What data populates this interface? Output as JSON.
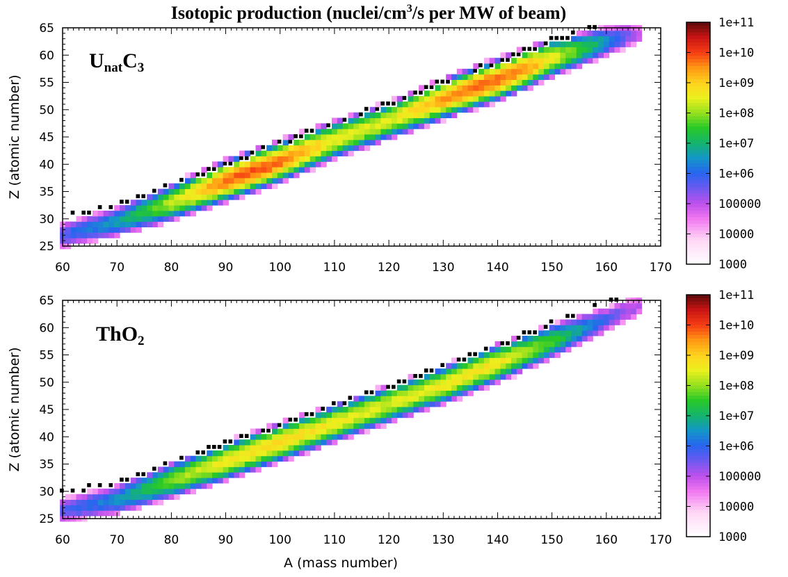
{
  "figure": {
    "title": "Isotopic production (nuclei/cm",
    "title_sup": "3",
    "title_rest": "/s per MW of beam)"
  },
  "chart_data": [
    {
      "type": "heatmap",
      "target": {
        "main": "U",
        "sub": "nat",
        "main2": "C",
        "sub2": "3"
      },
      "xlabel": "",
      "ylabel": "Z (atomic number)",
      "xlim": [
        60,
        170
      ],
      "ylim": [
        25,
        65
      ],
      "x_ticks": [
        "60",
        "70",
        "80",
        "90",
        "100",
        "110",
        "120",
        "130",
        "140",
        "150",
        "160",
        "170"
      ],
      "y_ticks": [
        "25",
        "30",
        "35",
        "40",
        "45",
        "50",
        "55",
        "60",
        "65"
      ],
      "colorbar": {
        "scale": "log",
        "range": [
          1000,
          100000000000
        ],
        "tick_labels": [
          "1e+11",
          "1e+10",
          "1e+09",
          "1e+08",
          "1e+07",
          "1e+06",
          "100000",
          "10000",
          "1000"
        ]
      },
      "band": {
        "x_range": [
          60,
          166
        ],
        "ridge": [
          [
            60,
            27
          ],
          [
            70,
            29.5
          ],
          [
            80,
            33
          ],
          [
            90,
            37
          ],
          [
            100,
            40.5
          ],
          [
            110,
            44.5
          ],
          [
            120,
            48
          ],
          [
            130,
            52
          ],
          [
            140,
            55.5
          ],
          [
            150,
            59.5
          ],
          [
            160,
            62.5
          ],
          [
            166,
            64
          ]
        ],
        "peaks_log10": [
          [
            60,
            5.8
          ],
          [
            70,
            6.6
          ],
          [
            80,
            8.2
          ],
          [
            90,
            9.7
          ],
          [
            95,
            9.9
          ],
          [
            100,
            9.7
          ],
          [
            110,
            8.6
          ],
          [
            120,
            8.4
          ],
          [
            130,
            9.4
          ],
          [
            138,
            9.8
          ],
          [
            145,
            9.5
          ],
          [
            150,
            8.6
          ],
          [
            160,
            6.6
          ],
          [
            166,
            5.0
          ]
        ]
      }
    },
    {
      "type": "heatmap",
      "target": {
        "main": "ThO",
        "sub": "2"
      },
      "xlabel": "A (mass number)",
      "ylabel": "Z (atomic number)",
      "xlim": [
        60,
        170
      ],
      "ylim": [
        25,
        65
      ],
      "x_ticks": [
        "60",
        "70",
        "80",
        "90",
        "100",
        "110",
        "120",
        "130",
        "140",
        "150",
        "160",
        "170"
      ],
      "y_ticks": [
        "25",
        "30",
        "35",
        "40",
        "45",
        "50",
        "55",
        "60",
        "65"
      ],
      "colorbar": {
        "scale": "log",
        "range": [
          1000,
          100000000000
        ],
        "tick_labels": [
          "1e+11",
          "1e+10",
          "1e+09",
          "1e+08",
          "1e+07",
          "1e+06",
          "100000",
          "10000",
          "1000"
        ]
      },
      "band": {
        "x_range": [
          60,
          166
        ],
        "ridge": [
          [
            60,
            26.5
          ],
          [
            70,
            28.5
          ],
          [
            80,
            32
          ],
          [
            90,
            35.5
          ],
          [
            100,
            39
          ],
          [
            110,
            42.5
          ],
          [
            120,
            46
          ],
          [
            130,
            49.5
          ],
          [
            140,
            53.5
          ],
          [
            150,
            57.5
          ],
          [
            160,
            61.5
          ],
          [
            166,
            64
          ]
        ],
        "peaks_log10": [
          [
            60,
            5.6
          ],
          [
            70,
            6.5
          ],
          [
            80,
            7.9
          ],
          [
            90,
            8.7
          ],
          [
            100,
            8.9
          ],
          [
            110,
            8.6
          ],
          [
            120,
            8.4
          ],
          [
            130,
            8.6
          ],
          [
            140,
            8.7
          ],
          [
            150,
            7.6
          ],
          [
            160,
            5.8
          ],
          [
            166,
            5.0
          ]
        ]
      }
    }
  ]
}
